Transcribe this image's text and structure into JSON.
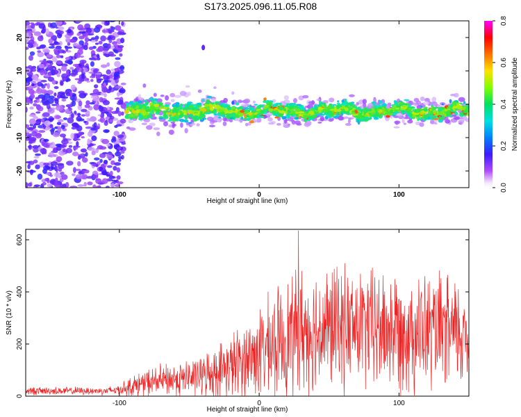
{
  "title": "S173.2025.096.11.05.R08",
  "colors": {
    "trace": "#ee2222",
    "axis": "#000000",
    "speckle": "#7a2be0",
    "ridge_core": "#00c8ff"
  },
  "chart_data": [
    {
      "type": "heatmap",
      "xlabel": "Height of straight line (km)",
      "ylabel": "Frequency (Hz)",
      "xlim": [
        -167,
        150
      ],
      "ylim": [
        -25,
        25
      ],
      "x_ticks": [
        -100,
        0,
        100
      ],
      "x_tick_labels": [
        "-100",
        "0",
        "100"
      ],
      "y_ticks": [
        -20,
        -10,
        0,
        10,
        20
      ],
      "y_tick_labels": [
        "-20",
        "-10",
        "0",
        "10",
        "20"
      ],
      "colorbar": {
        "label": "Normalized spectral amplitude",
        "range": [
          0.0,
          0.8
        ],
        "ticks": [
          0.0,
          0.2,
          0.4,
          0.6,
          0.8
        ],
        "tick_labels": [
          "0.0",
          "0.2",
          "0.4",
          "0.6",
          "0.8"
        ],
        "colormap": "rainbow (magenta-white at 0, blue, cyan, green, yellow, red, magenta at 0.8)"
      },
      "features": {
        "noise_region_x": [
          -167,
          -100
        ],
        "ridge_start_x": -95,
        "ridge_center_hz": -2,
        "ridge_halfwidth_hz": 3,
        "spike_at": {
          "x": -40,
          "y": 17
        }
      },
      "grid": false
    },
    {
      "type": "line",
      "xlabel": "Height of straight line (km)",
      "ylabel": "SNR (10 * v/v)",
      "xlim": [
        -167,
        150
      ],
      "ylim": [
        0,
        640
      ],
      "x_ticks": [
        -100,
        0,
        100
      ],
      "x_tick_labels": [
        "-100",
        "0",
        "100"
      ],
      "y_ticks": [
        0,
        200,
        400,
        600
      ],
      "y_tick_labels": [
        "0",
        "200",
        "400",
        "600"
      ],
      "series": [
        {
          "color": "#ee2222",
          "x": [
            -167,
            -150,
            -130,
            -110,
            -100,
            -90,
            -80,
            -70,
            -60,
            -50,
            -40,
            -30,
            -20,
            -10,
            0,
            10,
            20,
            30,
            40,
            50,
            60,
            70,
            80,
            90,
            100,
            110,
            120,
            130,
            140,
            150
          ],
          "y": [
            20,
            20,
            20,
            20,
            25,
            40,
            50,
            60,
            65,
            70,
            80,
            95,
            115,
            140,
            165,
            195,
            225,
            250,
            255,
            260,
            265,
            262,
            258,
            255,
            255,
            250,
            245,
            240,
            238,
            235
          ],
          "spread": [
            15,
            15,
            15,
            15,
            20,
            40,
            55,
            60,
            65,
            70,
            80,
            100,
            125,
            150,
            175,
            200,
            225,
            240,
            240,
            240,
            235,
            235,
            235,
            235,
            235,
            230,
            225,
            220,
            215,
            210
          ],
          "max_y": 635,
          "max_at_x": 28
        }
      ],
      "grid": false
    }
  ]
}
